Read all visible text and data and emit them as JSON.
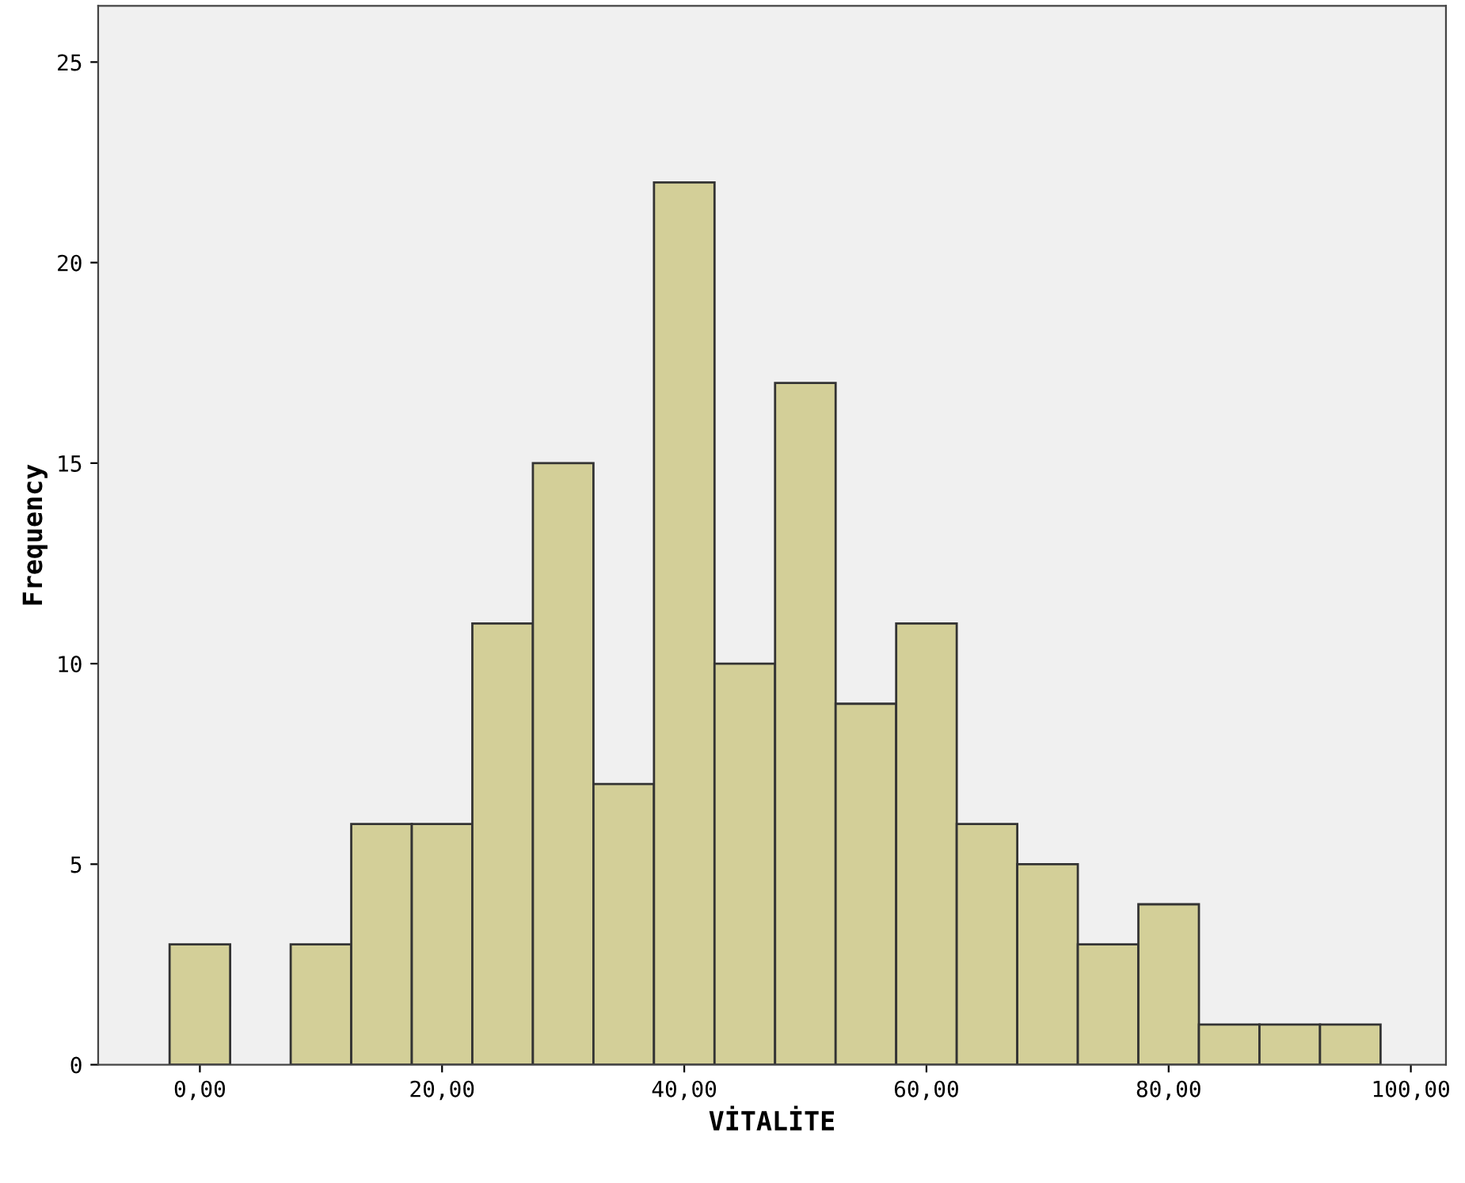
{
  "chart_data": {
    "type": "histogram",
    "xlabel": "VİTALİTE",
    "ylabel": "Frequency",
    "bins": [
      -2.5,
      2.5,
      7.5,
      12.5,
      17.5,
      22.5,
      27.5,
      32.5,
      37.5,
      42.5,
      47.5,
      52.5,
      57.5,
      62.5,
      67.5,
      72.5,
      77.5,
      82.5,
      87.5,
      92.5,
      97.5
    ],
    "values": [
      3,
      0,
      3,
      6,
      6,
      11,
      15,
      7,
      22,
      10,
      17,
      9,
      11,
      6,
      5,
      3,
      4,
      1,
      1,
      1
    ],
    "color": "#d3cf98",
    "xlim": [
      -8.4,
      102.9
    ],
    "ylim": [
      0,
      26.4
    ],
    "xticks": [
      {
        "value": 0,
        "label": "0,00"
      },
      {
        "value": 20,
        "label": "20,00"
      },
      {
        "value": 40,
        "label": "40,00"
      },
      {
        "value": 60,
        "label": "60,00"
      },
      {
        "value": 80,
        "label": "80,00"
      },
      {
        "value": 100,
        "label": "100,00"
      }
    ],
    "yticks": [
      0,
      5,
      10,
      15,
      20,
      25
    ],
    "grid": false
  }
}
